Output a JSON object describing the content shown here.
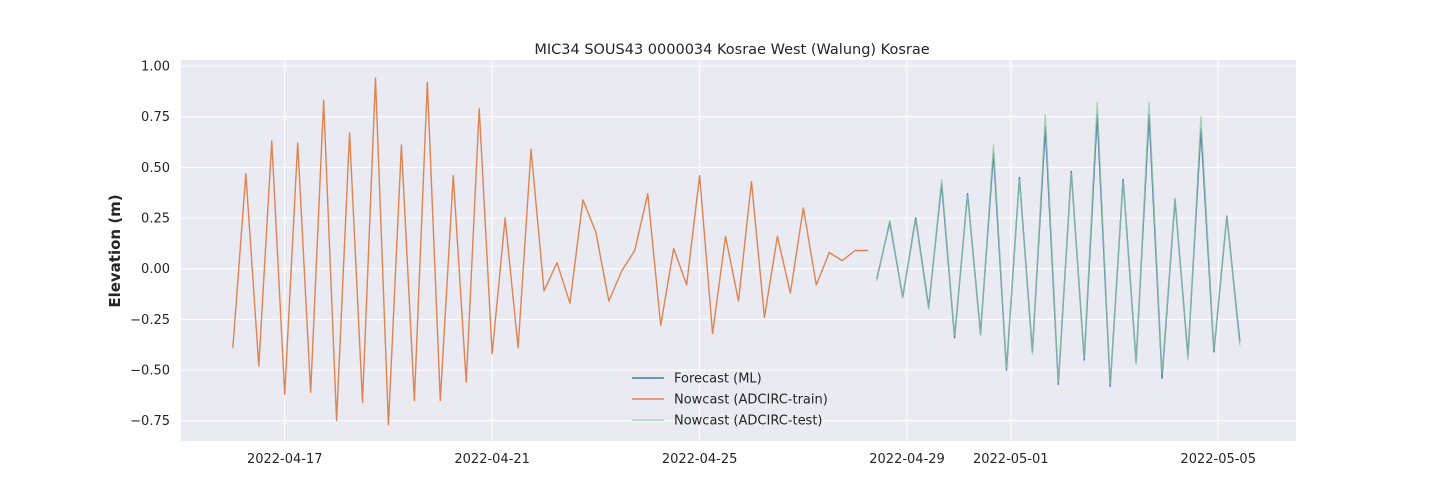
{
  "chart_data": {
    "type": "line",
    "title": "MIC34 SOUS43 0000034 Kosrae West (Walung) Kosrae",
    "xlabel": "",
    "ylabel": "Elevation (m)",
    "x_axis_type": "date",
    "xlim": [
      "2022-04-15T00:00",
      "2022-05-06T12:00"
    ],
    "ylim": [
      -0.85,
      1.03
    ],
    "x_ticks": [
      "2022-04-17",
      "2022-04-21",
      "2022-04-25",
      "2022-04-29",
      "2022-05-01",
      "2022-05-05"
    ],
    "y_ticks": [
      1.0,
      0.75,
      0.5,
      0.25,
      0.0,
      -0.25,
      -0.5,
      -0.75
    ],
    "y_tick_labels": [
      "1.00",
      "0.75",
      "0.50",
      "0.25",
      "0.00",
      "−0.25",
      "−0.50",
      "−0.75"
    ],
    "grid": true,
    "legend_position": "bottom-center",
    "background": "#eaeaf2",
    "series": [
      {
        "name": "Forecast (ML)",
        "color": "#4c72b0",
        "points": [
          [
            "2022-04-28T10:00",
            -0.05
          ],
          [
            "2022-04-28T16:00",
            0.23
          ],
          [
            "2022-04-28T22:00",
            -0.14
          ],
          [
            "2022-04-29T04:00",
            0.25
          ],
          [
            "2022-04-29T10:00",
            -0.19
          ],
          [
            "2022-04-29T16:00",
            0.42
          ],
          [
            "2022-04-29T22:00",
            -0.34
          ],
          [
            "2022-04-30T04:00",
            0.37
          ],
          [
            "2022-04-30T10:00",
            -0.32
          ],
          [
            "2022-04-30T16:00",
            0.57
          ],
          [
            "2022-04-30T22:00",
            -0.5
          ],
          [
            "2022-05-01T04:00",
            0.45
          ],
          [
            "2022-05-01T10:00",
            -0.41
          ],
          [
            "2022-05-01T16:00",
            0.7
          ],
          [
            "2022-05-01T22:00",
            -0.57
          ],
          [
            "2022-05-02T04:00",
            0.48
          ],
          [
            "2022-05-02T10:00",
            -0.45
          ],
          [
            "2022-05-02T16:00",
            0.76
          ],
          [
            "2022-05-02T22:00",
            -0.58
          ],
          [
            "2022-05-03T04:00",
            0.44
          ],
          [
            "2022-05-03T10:00",
            -0.46
          ],
          [
            "2022-05-03T16:00",
            0.76
          ],
          [
            "2022-05-03T22:00",
            -0.54
          ],
          [
            "2022-05-04T04:00",
            0.34
          ],
          [
            "2022-05-04T10:00",
            -0.43
          ],
          [
            "2022-05-04T16:00",
            0.69
          ],
          [
            "2022-05-04T22:00",
            -0.41
          ],
          [
            "2022-05-05T04:00",
            0.26
          ],
          [
            "2022-05-05T10:00",
            -0.36
          ]
        ]
      },
      {
        "name": "Nowcast (ADCIRC-train)",
        "color": "#dd8452",
        "points": [
          [
            "2022-04-16T00:00",
            -0.39
          ],
          [
            "2022-04-16T06:00",
            0.47
          ],
          [
            "2022-04-16T12:00",
            -0.48
          ],
          [
            "2022-04-16T18:00",
            0.63
          ],
          [
            "2022-04-17T00:00",
            -0.62
          ],
          [
            "2022-04-17T06:00",
            0.62
          ],
          [
            "2022-04-17T12:00",
            -0.61
          ],
          [
            "2022-04-17T18:00",
            0.83
          ],
          [
            "2022-04-18T00:00",
            -0.75
          ],
          [
            "2022-04-18T06:00",
            0.67
          ],
          [
            "2022-04-18T12:00",
            -0.66
          ],
          [
            "2022-04-18T18:00",
            0.94
          ],
          [
            "2022-04-19T00:00",
            -0.77
          ],
          [
            "2022-04-19T06:00",
            0.61
          ],
          [
            "2022-04-19T12:00",
            -0.65
          ],
          [
            "2022-04-19T18:00",
            0.92
          ],
          [
            "2022-04-20T00:00",
            -0.65
          ],
          [
            "2022-04-20T06:00",
            0.46
          ],
          [
            "2022-04-20T12:00",
            -0.56
          ],
          [
            "2022-04-20T18:00",
            0.79
          ],
          [
            "2022-04-21T00:00",
            -0.42
          ],
          [
            "2022-04-21T06:00",
            0.25
          ],
          [
            "2022-04-21T12:00",
            -0.39
          ],
          [
            "2022-04-21T18:00",
            0.59
          ],
          [
            "2022-04-22T00:00",
            -0.11
          ],
          [
            "2022-04-22T06:00",
            0.03
          ],
          [
            "2022-04-22T12:00",
            -0.17
          ],
          [
            "2022-04-22T18:00",
            0.34
          ],
          [
            "2022-04-23T00:00",
            0.18
          ],
          [
            "2022-04-23T06:00",
            -0.16
          ],
          [
            "2022-04-23T12:00",
            -0.01
          ],
          [
            "2022-04-23T18:00",
            0.09
          ],
          [
            "2022-04-24T00:00",
            0.37
          ],
          [
            "2022-04-24T06:00",
            -0.28
          ],
          [
            "2022-04-24T12:00",
            0.1
          ],
          [
            "2022-04-24T18:00",
            -0.08
          ],
          [
            "2022-04-25T00:00",
            0.46
          ],
          [
            "2022-04-25T06:00",
            -0.32
          ],
          [
            "2022-04-25T12:00",
            0.16
          ],
          [
            "2022-04-25T18:00",
            -0.16
          ],
          [
            "2022-04-26T00:00",
            0.43
          ],
          [
            "2022-04-26T06:00",
            -0.24
          ],
          [
            "2022-04-26T12:00",
            0.16
          ],
          [
            "2022-04-26T18:00",
            -0.12
          ],
          [
            "2022-04-27T00:00",
            0.3
          ],
          [
            "2022-04-27T06:00",
            -0.08
          ],
          [
            "2022-04-27T12:00",
            0.08
          ],
          [
            "2022-04-27T18:00",
            0.04
          ],
          [
            "2022-04-28T00:00",
            0.09
          ],
          [
            "2022-04-28T06:00",
            0.09
          ]
        ]
      },
      {
        "name": "Nowcast (ADCIRC-test)",
        "color": "#8fc9a0",
        "points": [
          [
            "2022-04-28T10:00",
            -0.06
          ],
          [
            "2022-04-28T16:00",
            0.24
          ],
          [
            "2022-04-28T22:00",
            -0.14
          ],
          [
            "2022-04-29T04:00",
            0.24
          ],
          [
            "2022-04-29T10:00",
            -0.2
          ],
          [
            "2022-04-29T16:00",
            0.44
          ],
          [
            "2022-04-29T22:00",
            -0.33
          ],
          [
            "2022-04-30T04:00",
            0.36
          ],
          [
            "2022-04-30T10:00",
            -0.33
          ],
          [
            "2022-04-30T16:00",
            0.61
          ],
          [
            "2022-04-30T22:00",
            -0.49
          ],
          [
            "2022-05-01T04:00",
            0.44
          ],
          [
            "2022-05-01T10:00",
            -0.42
          ],
          [
            "2022-05-01T16:00",
            0.76
          ],
          [
            "2022-05-01T22:00",
            -0.56
          ],
          [
            "2022-05-02T04:00",
            0.47
          ],
          [
            "2022-05-02T10:00",
            -0.44
          ],
          [
            "2022-05-02T16:00",
            0.82
          ],
          [
            "2022-05-02T22:00",
            -0.57
          ],
          [
            "2022-05-03T04:00",
            0.43
          ],
          [
            "2022-05-03T10:00",
            -0.47
          ],
          [
            "2022-05-03T16:00",
            0.82
          ],
          [
            "2022-05-03T22:00",
            -0.52
          ],
          [
            "2022-05-04T04:00",
            0.35
          ],
          [
            "2022-05-04T10:00",
            -0.45
          ],
          [
            "2022-05-04T16:00",
            0.75
          ],
          [
            "2022-05-04T22:00",
            -0.4
          ],
          [
            "2022-05-05T04:00",
            0.26
          ],
          [
            "2022-05-05T10:00",
            -0.38
          ]
        ]
      }
    ]
  }
}
